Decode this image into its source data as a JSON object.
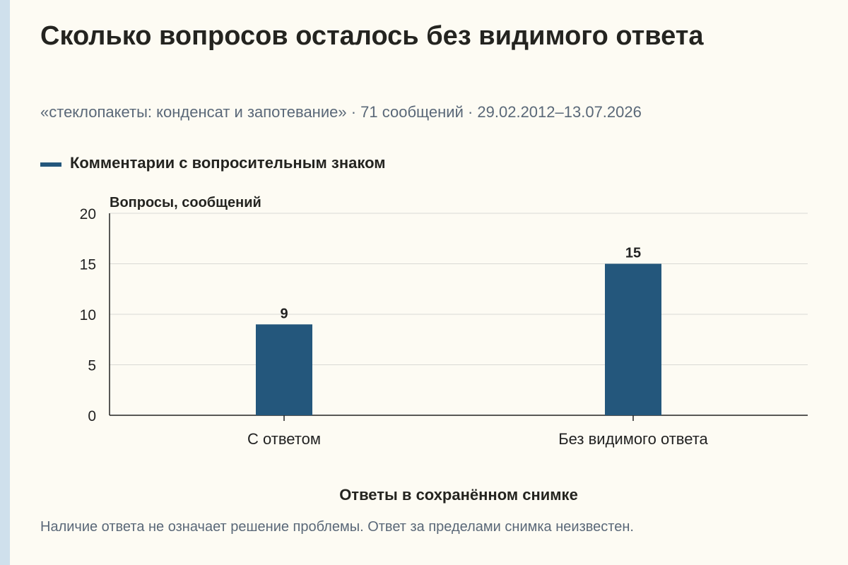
{
  "title": "Сколько вопросов осталось без видимого ответа",
  "subtitle": "«стеклопакеты: конденсат и запотевание» · 71 сообщений · 29.02.2012–13.07.2026",
  "footnote": "Наличие ответа не означает решение проблемы. Ответ за пределами снимка неизвестен.",
  "colors": {
    "bar": "#24577c",
    "grid": "#d9d9d4",
    "axis": "#222222",
    "stripe": "#cfe0ec"
  },
  "chart_data": {
    "type": "bar",
    "title": "Сколько вопросов осталось без видимого ответа",
    "ylabel": "Вопросы, сообщений",
    "xlabel": "Ответы в сохранённом снимке",
    "categories": [
      "С ответом",
      "Без видимого ответа"
    ],
    "series": [
      {
        "name": "Комментарии с вопросительным знаком",
        "values": [
          9,
          15
        ]
      }
    ],
    "ylim": [
      0,
      20
    ],
    "yticks": [
      0,
      5,
      10,
      15,
      20
    ],
    "grid": true,
    "legend": "top-left",
    "data_labels": true
  }
}
